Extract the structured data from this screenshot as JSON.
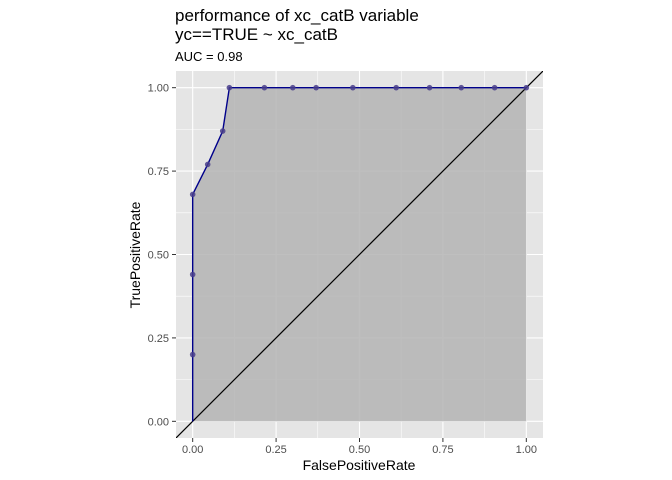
{
  "chart_data": {
    "type": "line",
    "title_lines": [
      "performance of xc_catB variable",
      "yc==TRUE ~ xc_catB"
    ],
    "subtitle": "AUC = 0.98",
    "xlabel": "FalsePositiveRate",
    "ylabel": "TruePositiveRate",
    "xlim": [
      -0.05,
      1.05
    ],
    "ylim": [
      -0.05,
      1.05
    ],
    "x_ticks": [
      0,
      0.25,
      0.5,
      0.75,
      1
    ],
    "x_tick_labels": [
      "0.00",
      "0.25",
      "0.50",
      "0.75",
      "1.00"
    ],
    "y_ticks": [
      0,
      0.25,
      0.5,
      0.75,
      1
    ],
    "y_tick_labels": [
      "0.00",
      "0.25",
      "0.50",
      "0.75",
      "1.00"
    ],
    "grid": true,
    "series": [
      {
        "x": [
          0,
          0,
          0,
          0,
          0.045,
          0.09,
          0.11,
          0.215,
          0.3,
          0.37,
          0.48,
          0.61,
          0.71,
          0.805,
          0.905,
          1.0
        ],
        "y": [
          0,
          0.2,
          0.44,
          0.68,
          0.77,
          0.87,
          1.0,
          1.0,
          1.0,
          1.0,
          1.0,
          1.0,
          1.0,
          1.0,
          1.0,
          1.0
        ]
      }
    ],
    "points_shown_from_index": 1,
    "reference_line": {
      "x": [
        -0.05,
        1.05
      ],
      "y": [
        -0.05,
        1.05
      ]
    },
    "colors": {
      "panel": "#e5e5e5",
      "grid_major": "#ffffff",
      "area_fill": "#b4b4b4",
      "curve": "#00008b",
      "points": "#483d8b",
      "reference": "#000000"
    }
  }
}
